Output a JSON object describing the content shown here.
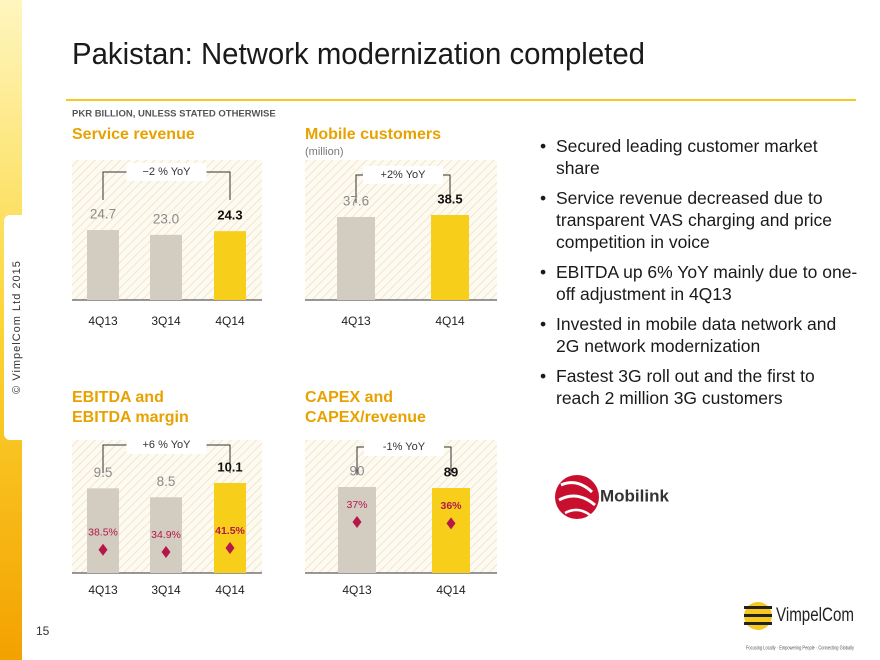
{
  "header": {
    "title": "Pakistan: Network modernization completed",
    "units": "PKR BILLION, UNLESS STATED OTHERWISE"
  },
  "chart_data": [
    {
      "type": "bar",
      "title": [
        "Service revenue"
      ],
      "annotation": "−2 % YoY",
      "categories": [
        "4Q13",
        "3Q14",
        "4Q14"
      ],
      "series": [
        {
          "values": [
            24.7,
            23.0,
            24.3
          ],
          "value_labels": [
            "24.7",
            "23.0",
            "24.3"
          ],
          "colors": [
            "#d3ccc0",
            "#d3ccc0",
            "#f7cf1a"
          ]
        }
      ],
      "highlight_color": "#f7cf1a"
    },
    {
      "type": "bar",
      "title": [
        "Mobile customers"
      ],
      "subtitle": "(million)",
      "annotation": "+2% YoY",
      "categories": [
        "4Q13",
        "4Q14"
      ],
      "series": [
        {
          "values": [
            37.6,
            38.5
          ],
          "value_labels": [
            "37.6",
            "38.5"
          ],
          "colors": [
            "#d3ccc0",
            "#f7cf1a"
          ]
        }
      ],
      "highlight_color": "#f7cf1a"
    },
    {
      "type": "bar",
      "title": [
        "EBITDA and",
        "EBITDA margin"
      ],
      "annotation": "+6 % YoY",
      "categories": [
        "4Q13",
        "3Q14",
        "4Q14"
      ],
      "series": [
        {
          "values": [
            9.5,
            8.5,
            10.1
          ],
          "value_labels": [
            "9.5",
            "8.5",
            "10.1"
          ],
          "colors": [
            "#d3ccc0",
            "#d3ccc0",
            "#f7cf1a"
          ]
        },
        {
          "values": [
            38.5,
            34.9,
            41.5
          ],
          "value_labels": [
            "38.5%",
            "34.9%",
            "41.5%"
          ],
          "color": "#b5174b",
          "marker": "diamond"
        }
      ],
      "highlight_color": "#f7cf1a"
    },
    {
      "type": "bar",
      "title": [
        "CAPEX and",
        "CAPEX/revenue"
      ],
      "annotation": "-1% YoY",
      "categories": [
        "4Q13",
        "4Q14"
      ],
      "series": [
        {
          "values": [
            90,
            89
          ],
          "value_labels": [
            "90",
            "89"
          ],
          "colors": [
            "#d3ccc0",
            "#f7cf1a"
          ]
        },
        {
          "values": [
            37,
            36
          ],
          "value_labels": [
            "37%",
            "36%"
          ],
          "color": "#b5174b",
          "marker": "diamond"
        }
      ],
      "highlight_color": "#f7cf1a"
    }
  ],
  "bullets": [
    "Secured leading customer market share",
    "Service revenue decreased due to transparent VAS charging and price competition in voice",
    "EBITDA up 6% YoY mainly due to one-off adjustment in 4Q13",
    "Invested in mobile data network and 2G network modernization",
    "Fastest 3G roll out and the first to reach 2 million 3G customers"
  ],
  "footer": {
    "copyright": "© VimpelCom Ltd 2015",
    "page_number": "15",
    "partner_logo": "Mobilink",
    "company_logo": "VimpelCom",
    "tagline": "Focusing Locally · Empowering People · Connecting Globally"
  }
}
